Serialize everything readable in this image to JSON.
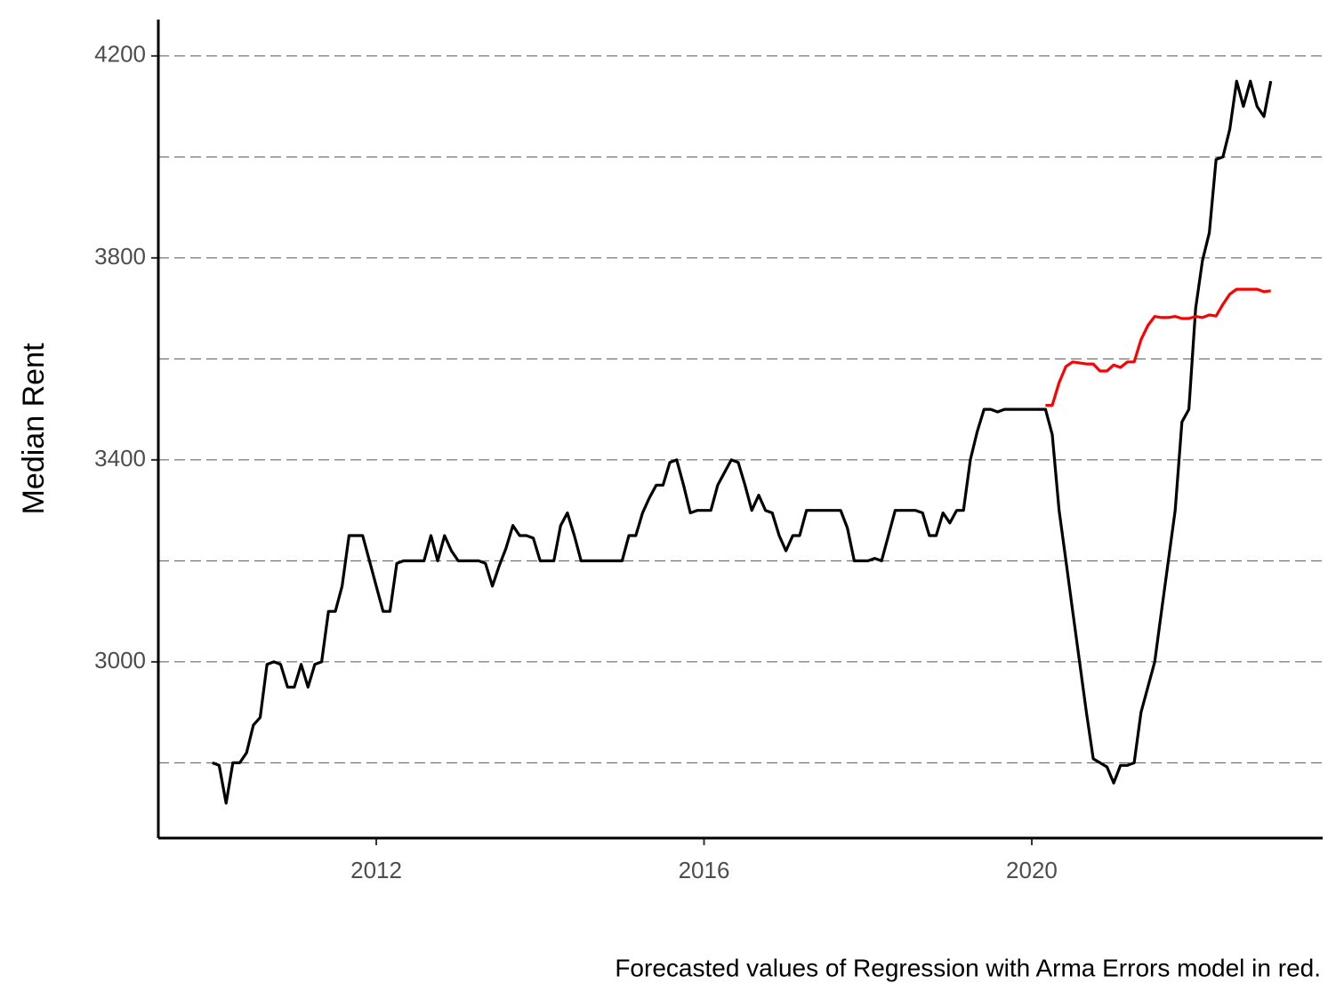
{
  "chart_data": {
    "type": "line",
    "y_label": "Median Rent",
    "caption": "Forecasted values of Regression with Arma Errors model in red.",
    "x": [
      2010,
      2010.083,
      2010.167,
      2010.25,
      2010.333,
      2010.417,
      2010.5,
      2010.583,
      2010.667,
      2010.75,
      2010.833,
      2010.917,
      2011,
      2011.083,
      2011.167,
      2011.25,
      2011.333,
      2011.417,
      2011.5,
      2011.583,
      2011.667,
      2011.75,
      2011.833,
      2011.917,
      2012,
      2012.083,
      2012.167,
      2012.25,
      2012.333,
      2012.417,
      2012.5,
      2012.583,
      2012.667,
      2012.75,
      2012.833,
      2012.917,
      2013,
      2013.083,
      2013.167,
      2013.25,
      2013.333,
      2013.417,
      2013.5,
      2013.583,
      2013.667,
      2013.75,
      2013.833,
      2013.917,
      2014,
      2014.083,
      2014.167,
      2014.25,
      2014.333,
      2014.417,
      2014.5,
      2014.583,
      2014.667,
      2014.75,
      2014.833,
      2014.917,
      2015,
      2015.083,
      2015.167,
      2015.25,
      2015.333,
      2015.417,
      2015.5,
      2015.583,
      2015.667,
      2015.75,
      2015.833,
      2015.917,
      2016,
      2016.083,
      2016.167,
      2016.25,
      2016.333,
      2016.417,
      2016.5,
      2016.583,
      2016.667,
      2016.75,
      2016.833,
      2016.917,
      2017,
      2017.083,
      2017.167,
      2017.25,
      2017.333,
      2017.417,
      2017.5,
      2017.583,
      2017.667,
      2017.75,
      2017.833,
      2017.917,
      2018,
      2018.083,
      2018.167,
      2018.25,
      2018.333,
      2018.417,
      2018.5,
      2018.583,
      2018.667,
      2018.75,
      2018.833,
      2018.917,
      2019,
      2019.083,
      2019.167,
      2019.25,
      2019.333,
      2019.417,
      2019.5,
      2019.583,
      2019.667,
      2019.75,
      2019.833,
      2019.917,
      2020,
      2020.083,
      2020.167,
      2020.25,
      2020.333,
      2020.417,
      2020.5,
      2020.583,
      2020.667,
      2020.75,
      2020.833,
      2020.917,
      2021,
      2021.083,
      2021.167,
      2021.25,
      2021.333,
      2021.417,
      2021.5,
      2021.583,
      2021.667,
      2021.75,
      2021.833,
      2021.917,
      2022,
      2022.083,
      2022.167,
      2022.25,
      2022.333,
      2022.417,
      2022.5,
      2022.583,
      2022.667,
      2022.75,
      2022.833,
      2022.917
    ],
    "series": [
      {
        "color": "#000000",
        "values": [
          2800,
          2795,
          2720,
          2800,
          2800,
          2820,
          2875,
          2890,
          2995,
          3000,
          2995,
          2950,
          2950,
          2995,
          2950,
          2995,
          3000,
          3100,
          3100,
          3150,
          3250,
          3250,
          3250,
          3200,
          3150,
          3100,
          3100,
          3195,
          3200,
          3200,
          3200,
          3200,
          3250,
          3200,
          3250,
          3220,
          3200,
          3200,
          3200,
          3200,
          3195,
          3150,
          3190,
          3225,
          3270,
          3250,
          3250,
          3245,
          3200,
          3200,
          3200,
          3270,
          3295,
          3250,
          3200,
          3200,
          3200,
          3200,
          3200,
          3200,
          3200,
          3250,
          3250,
          3295,
          3325,
          3350,
          3350,
          3395,
          3400,
          3350,
          3295,
          3300,
          3300,
          3300,
          3350,
          3375,
          3400,
          3395,
          3350,
          3300,
          3330,
          3300,
          3295,
          3250,
          3220,
          3250,
          3250,
          3300,
          3300,
          3300,
          3300,
          3300,
          3300,
          3265,
          3200,
          3200,
          3200,
          3205,
          3200,
          3250,
          3300,
          3300,
          3300,
          3300,
          3295,
          3250,
          3250,
          3295,
          3275,
          3300,
          3300,
          3400,
          3455,
          3500,
          3500,
          3495,
          3500,
          3500,
          3500,
          3500,
          3500,
          3500,
          3500,
          3450,
          3300,
          3200,
          3100,
          3000,
          2900,
          2808,
          2800,
          2792,
          2760,
          2795,
          2795,
          2800,
          2900,
          2950,
          3000,
          3100,
          3200,
          3300,
          3475,
          3500,
          3700,
          3795,
          3850,
          3995,
          4000,
          4055,
          4150,
          4100,
          4150,
          4100,
          4080,
          4150
        ]
      },
      {
        "color": "#ff0000",
        "values": [
          null,
          null,
          null,
          null,
          null,
          null,
          null,
          null,
          null,
          null,
          null,
          null,
          null,
          null,
          null,
          null,
          null,
          null,
          null,
          null,
          null,
          null,
          null,
          null,
          null,
          null,
          null,
          null,
          null,
          null,
          null,
          null,
          null,
          null,
          null,
          null,
          null,
          null,
          null,
          null,
          null,
          null,
          null,
          null,
          null,
          null,
          null,
          null,
          null,
          null,
          null,
          null,
          null,
          null,
          null,
          null,
          null,
          null,
          null,
          null,
          null,
          null,
          null,
          null,
          null,
          null,
          null,
          null,
          null,
          null,
          null,
          null,
          null,
          null,
          null,
          null,
          null,
          null,
          null,
          null,
          null,
          null,
          null,
          null,
          null,
          null,
          null,
          null,
          null,
          null,
          null,
          null,
          null,
          null,
          null,
          null,
          null,
          null,
          null,
          null,
          null,
          null,
          null,
          null,
          null,
          null,
          null,
          null,
          null,
          null,
          null,
          null,
          null,
          null,
          null,
          null,
          null,
          null,
          null,
          null,
          null,
          null,
          3508,
          3508,
          3553,
          3585,
          3594,
          3592,
          3590,
          3590,
          3576,
          3576,
          3588,
          3583,
          3594,
          3594,
          3638,
          3666,
          3684,
          3682,
          3682,
          3684,
          3680,
          3680,
          3684,
          3682,
          3687,
          3685,
          3708,
          3728,
          3738,
          3738,
          3738,
          3738,
          3733,
          3735
        ]
      }
    ],
    "xlim": [
      2009.34,
      2023.55
    ],
    "xticks": [
      2012,
      2016,
      2020
    ],
    "ylim": [
      2651,
      4272
    ],
    "yticks": [
      3000,
      3400,
      3800,
      4200
    ],
    "yminorticks": [
      2800,
      3200,
      3600,
      4000
    ],
    "grid": true
  }
}
